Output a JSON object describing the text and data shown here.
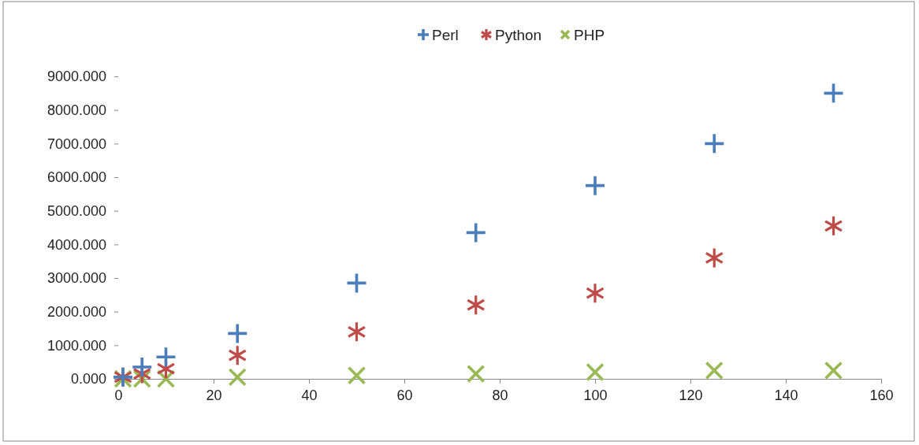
{
  "chart_data": {
    "type": "scatter",
    "x": [
      1,
      5,
      10,
      25,
      50,
      75,
      100,
      125,
      150
    ],
    "series": [
      {
        "name": "Perl",
        "color": "#4a7ebb",
        "marker": "cross",
        "values": [
          50,
          350,
          650,
          1350,
          2850,
          4350,
          5750,
          7000,
          8500
        ]
      },
      {
        "name": "Python",
        "color": "#be4b48",
        "marker": "star",
        "values": [
          50,
          150,
          300,
          700,
          1400,
          2200,
          2550,
          3600,
          4550
        ]
      },
      {
        "name": "PHP",
        "color": "#98b954",
        "marker": "cross",
        "values": [
          0,
          0,
          0,
          50,
          100,
          150,
          200,
          250,
          250
        ]
      }
    ],
    "xlim": [
      0,
      160
    ],
    "xticks": [
      0,
      20,
      40,
      60,
      80,
      100,
      120,
      140,
      160
    ],
    "ylim": [
      0,
      9000
    ],
    "yticks": [
      {
        "value": 0,
        "label": "0.000"
      },
      {
        "value": 1000,
        "label": "1000.000"
      },
      {
        "value": 2000,
        "label": "2000.000"
      },
      {
        "value": 3000,
        "label": "3000.000"
      },
      {
        "value": 4000,
        "label": "4000.000"
      },
      {
        "value": 5000,
        "label": "5000.000"
      },
      {
        "value": 6000,
        "label": "6000.000"
      },
      {
        "value": 7000,
        "label": "7000.000"
      },
      {
        "value": 8000,
        "label": "8000.000"
      },
      {
        "value": 9000,
        "label": "9000.000"
      }
    ],
    "grid": false,
    "legend": "top"
  }
}
